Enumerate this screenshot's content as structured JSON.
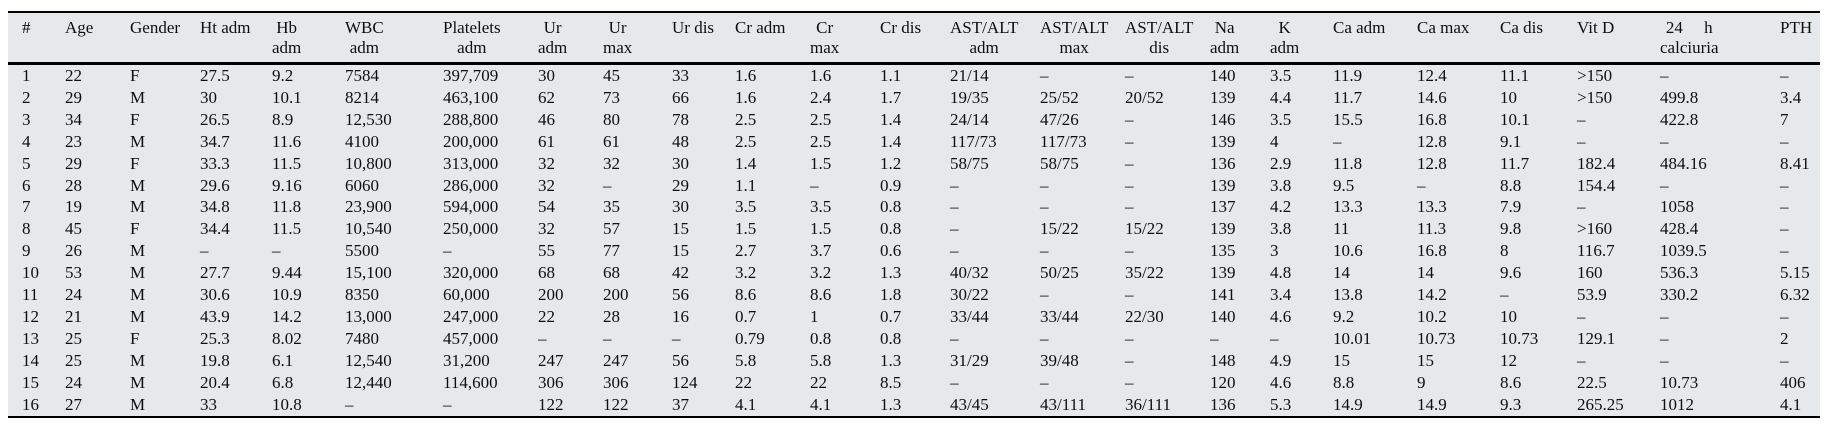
{
  "colors": {
    "table_background": "#e5e9ec",
    "rule": "#000000",
    "text": "#0e0e0e"
  },
  "table": {
    "columns": [
      {
        "l1": "#",
        "l2": ""
      },
      {
        "l1": "Age",
        "l2": ""
      },
      {
        "l1": "Gender",
        "l2": ""
      },
      {
        "l1": "Ht adm",
        "l2": ""
      },
      {
        "l1": "Hb",
        "l2": "adm"
      },
      {
        "l1": "WBC",
        "l2": "adm"
      },
      {
        "l1": "Platelets",
        "l2": "adm"
      },
      {
        "l1": "Ur",
        "l2": "adm"
      },
      {
        "l1": "Ur",
        "l2": "max"
      },
      {
        "l1": "Ur dis",
        "l2": ""
      },
      {
        "l1": "Cr adm",
        "l2": ""
      },
      {
        "l1": "Cr",
        "l2": "max"
      },
      {
        "l1": "Cr dis",
        "l2": ""
      },
      {
        "l1": "AST/ALT",
        "l2": "adm"
      },
      {
        "l1": "AST/ALT",
        "l2": "max"
      },
      {
        "l1": "AST/ALT",
        "l2": "dis"
      },
      {
        "l1": "Na",
        "l2": "adm"
      },
      {
        "l1": "K",
        "l2": "adm"
      },
      {
        "l1": "Ca adm",
        "l2": ""
      },
      {
        "l1": "Ca max",
        "l2": ""
      },
      {
        "l1": "Ca dis",
        "l2": ""
      },
      {
        "l1": "Vit D",
        "l2": ""
      },
      {
        "l1": "24 h",
        "l2": "calciuria",
        "spread": true
      },
      {
        "l1": "PTH",
        "l2": ""
      }
    ],
    "rows": [
      [
        "1",
        "22",
        "F",
        "27.5",
        "9.2",
        "7584",
        "397,709",
        "30",
        "45",
        "33",
        "1.6",
        "1.6",
        "1.1",
        "21/14",
        "–",
        "–",
        "140",
        "3.5",
        "11.9",
        "12.4",
        "11.1",
        ">150",
        "–",
        "–"
      ],
      [
        "2",
        "29",
        "M",
        "30",
        "10.1",
        "8214",
        "463,100",
        "62",
        "73",
        "66",
        "1.6",
        "2.4",
        "1.7",
        "19/35",
        "25/52",
        "20/52",
        "139",
        "4.4",
        "11.7",
        "14.6",
        "10",
        ">150",
        "499.8",
        "3.4"
      ],
      [
        "3",
        "34",
        "F",
        "26.5",
        "8.9",
        "12,530",
        "288,800",
        "46",
        "80",
        "78",
        "2.5",
        "2.5",
        "1.4",
        "24/14",
        "47/26",
        "–",
        "146",
        "3.5",
        "15.5",
        "16.8",
        "10.1",
        "–",
        "422.8",
        "7"
      ],
      [
        "4",
        "23",
        "M",
        "34.7",
        "11.6",
        "4100",
        "200,000",
        "61",
        "61",
        "48",
        "2.5",
        "2.5",
        "1.4",
        "117/73",
        "117/73",
        "–",
        "139",
        "4",
        "–",
        "12.8",
        "9.1",
        "–",
        "–",
        "–"
      ],
      [
        "5",
        "29",
        "F",
        "33.3",
        "11.5",
        "10,800",
        "313,000",
        "32",
        "32",
        "30",
        "1.4",
        "1.5",
        "1.2",
        "58/75",
        "58/75",
        "–",
        "136",
        "2.9",
        "11.8",
        "12.8",
        "11.7",
        "182.4",
        "484.16",
        "8.41"
      ],
      [
        "6",
        "28",
        "M",
        "29.6",
        "9.16",
        "6060",
        "286,000",
        "32",
        "–",
        "29",
        "1.1",
        "–",
        "0.9",
        "–",
        "–",
        "–",
        "139",
        "3.8",
        "9.5",
        "–",
        "8.8",
        "154.4",
        "–",
        "–"
      ],
      [
        "7",
        "19",
        "M",
        "34.8",
        "11.8",
        "23,900",
        "594,000",
        "54",
        "35",
        "30",
        "3.5",
        "3.5",
        "0.8",
        "–",
        "–",
        "–",
        "137",
        "4.2",
        "13.3",
        "13.3",
        "7.9",
        "–",
        "1058",
        "–"
      ],
      [
        "8",
        "45",
        "F",
        "34.4",
        "11.5",
        "10,540",
        "250,000",
        "32",
        "57",
        "15",
        "1.5",
        "1.5",
        "0.8",
        "–",
        "15/22",
        "15/22",
        "139",
        "3.8",
        "11",
        "11.3",
        "9.8",
        ">160",
        "428.4",
        "–"
      ],
      [
        "9",
        "26",
        "M",
        "–",
        "–",
        "5500",
        "–",
        "55",
        "77",
        "15",
        "2.7",
        "3.7",
        "0.6",
        "–",
        "–",
        "–",
        "135",
        "3",
        "10.6",
        "16.8",
        "8",
        "116.7",
        "1039.5",
        "–"
      ],
      [
        "10",
        "53",
        "M",
        "27.7",
        "9.44",
        "15,100",
        "320,000",
        "68",
        "68",
        "42",
        "3.2",
        "3.2",
        "1.3",
        "40/32",
        "50/25",
        "35/22",
        "139",
        "4.8",
        "14",
        "14",
        "9.6",
        "160",
        "536.3",
        "5.15"
      ],
      [
        "11",
        "24",
        "M",
        "30.6",
        "10.9",
        "8350",
        "60,000",
        "200",
        "200",
        "56",
        "8.6",
        "8.6",
        "1.8",
        "30/22",
        "–",
        "–",
        "141",
        "3.4",
        "13.8",
        "14.2",
        "–",
        "53.9",
        "330.2",
        "6.32"
      ],
      [
        "12",
        "21",
        "M",
        "43.9",
        "14.2",
        "13,000",
        "247,000",
        "22",
        "28",
        "16",
        "0.7",
        "1",
        "0.7",
        "33/44",
        "33/44",
        "22/30",
        "140",
        "4.6",
        "9.2",
        "10.2",
        "10",
        "–",
        "–",
        "–"
      ],
      [
        "13",
        "25",
        "F",
        "25.3",
        "8.02",
        "7480",
        "457,000",
        "–",
        "–",
        "–",
        "0.79",
        "0.8",
        "0.8",
        "–",
        "–",
        "–",
        "–",
        "–",
        "10.01",
        "10.73",
        "10.73",
        "129.1",
        "–",
        "2"
      ],
      [
        "14",
        "25",
        "M",
        "19.8",
        "6.1",
        "12,540",
        "31,200",
        "247",
        "247",
        "56",
        "5.8",
        "5.8",
        "1.3",
        "31/29",
        "39/48",
        "–",
        "148",
        "4.9",
        "15",
        "15",
        "12",
        "–",
        "–",
        "–"
      ],
      [
        "15",
        "24",
        "M",
        "20.4",
        "6.8",
        "12,440",
        "114,600",
        "306",
        "306",
        "124",
        "22",
        "22",
        "8.5",
        "–",
        "–",
        "–",
        "120",
        "4.6",
        "8.8",
        "9",
        "8.6",
        "22.5",
        "10.73",
        "406"
      ],
      [
        "16",
        "27",
        "M",
        "33",
        "10.8",
        "–",
        "–",
        "122",
        "122",
        "37",
        "4.1",
        "4.1",
        "1.3",
        "43/45",
        "43/111",
        "36/111",
        "136",
        "5.3",
        "14.9",
        "14.9",
        "9.3",
        "265.25",
        "1012",
        "4.1"
      ]
    ]
  }
}
